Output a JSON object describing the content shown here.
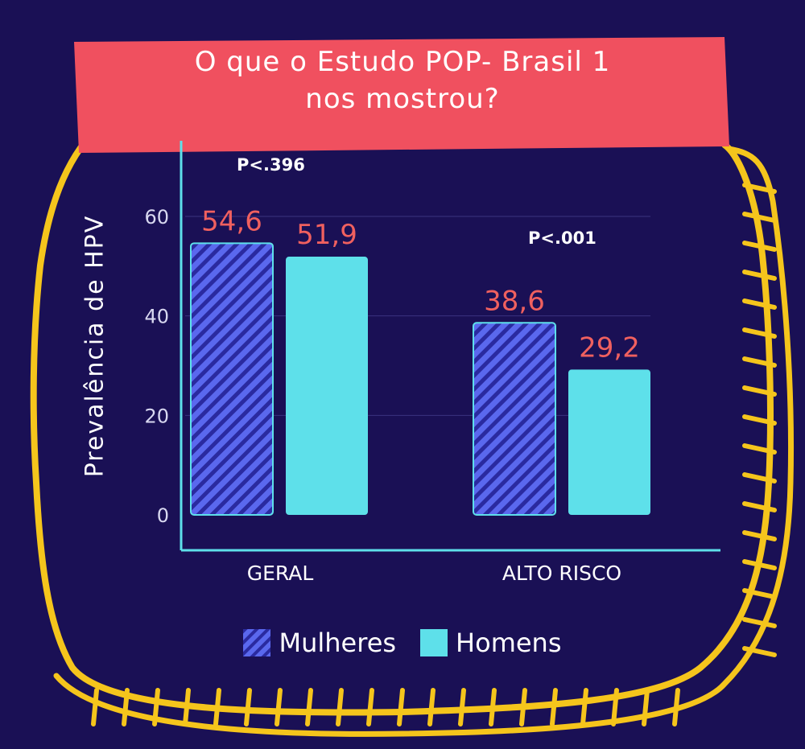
{
  "title_lines": [
    "O que o Estudo POP- Brasil 1",
    "nos mostrou?"
  ],
  "annotations": {
    "p_geral": "P<.396",
    "p_alto": "P<.001"
  },
  "colors": {
    "background": "#1a1055",
    "banner": "#f0505f",
    "frame": "#f5c51c",
    "homens": "#5ee0ea",
    "mulheres_fill": "#5a68ee",
    "mulheres_stripe": "#2a2aa0",
    "value_label": "#f0605f",
    "axis": "#5ee0ea"
  },
  "chart_data": {
    "type": "bar",
    "ylabel": "Prevalência de HPV",
    "categories": [
      "GERAL",
      "ALTO RISCO"
    ],
    "series": [
      {
        "name": "Mulheres",
        "values": [
          54.6,
          38.6
        ],
        "labels": [
          "54,6",
          "38,6"
        ],
        "pattern": "hatched"
      },
      {
        "name": "Homens",
        "values": [
          51.9,
          29.2
        ],
        "labels": [
          "51,9",
          "29,2"
        ],
        "pattern": "solid"
      }
    ],
    "yticks": [
      "0",
      "20",
      "40",
      "60"
    ],
    "ylim": [
      0,
      76
    ],
    "grid": true,
    "legend": "bottom"
  }
}
